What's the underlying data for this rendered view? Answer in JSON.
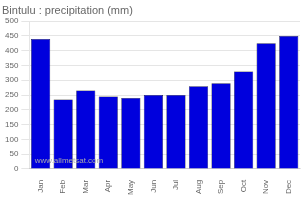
{
  "chart_data": {
    "type": "bar",
    "title": "Bintulu : precipitation (mm)",
    "categories": [
      "Jan",
      "Feb",
      "Mar",
      "Apr",
      "May",
      "Jun",
      "Jul",
      "Aug",
      "Sep",
      "Oct",
      "Nov",
      "Dec"
    ],
    "values": [
      440,
      235,
      265,
      245,
      240,
      250,
      250,
      280,
      290,
      330,
      425,
      450
    ],
    "color": "#0000DD",
    "ylim": [
      0,
      500
    ],
    "yticks": [
      0,
      50,
      100,
      150,
      200,
      250,
      300,
      350,
      400,
      450,
      500
    ],
    "grid": true,
    "annotation": "www.allmetsat.com"
  }
}
